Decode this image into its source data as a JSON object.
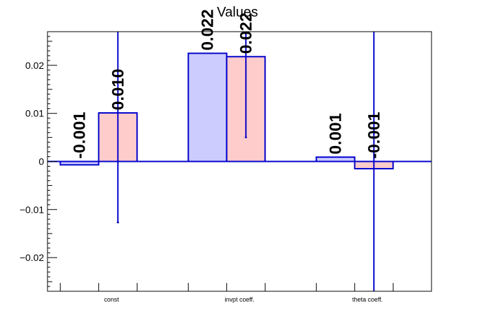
{
  "chart_data": {
    "type": "bar",
    "title": "Values",
    "categories": [
      "const",
      "invpt coeff.",
      "theta coeff."
    ],
    "ylim": [
      -0.027,
      0.027
    ],
    "yticks": [
      {
        "v": 0.02,
        "label": "0.02"
      },
      {
        "v": 0.01,
        "label": "0.01"
      },
      {
        "v": 0,
        "label": "0"
      },
      {
        "v": -0.01,
        "label": "−0.01"
      },
      {
        "v": -0.02,
        "label": "−0.02"
      }
    ],
    "grid": false,
    "legend": "none",
    "series": [
      {
        "fill": "#ccccff",
        "stroke": "#0000cc",
        "values": [
          -0.0007,
          0.0225,
          0.0009
        ],
        "labels": [
          "-0.001",
          "0.022",
          "0.001"
        ],
        "errors": [
          null,
          null,
          null
        ]
      },
      {
        "fill": "#ffcccc",
        "stroke": "#0000cc",
        "values": [
          0.0101,
          0.0218,
          -0.0015
        ],
        "labels": [
          "0.010",
          "0.022",
          "-0.001"
        ],
        "errors": [
          0.0228,
          0.0168,
          0.04
        ]
      }
    ]
  }
}
